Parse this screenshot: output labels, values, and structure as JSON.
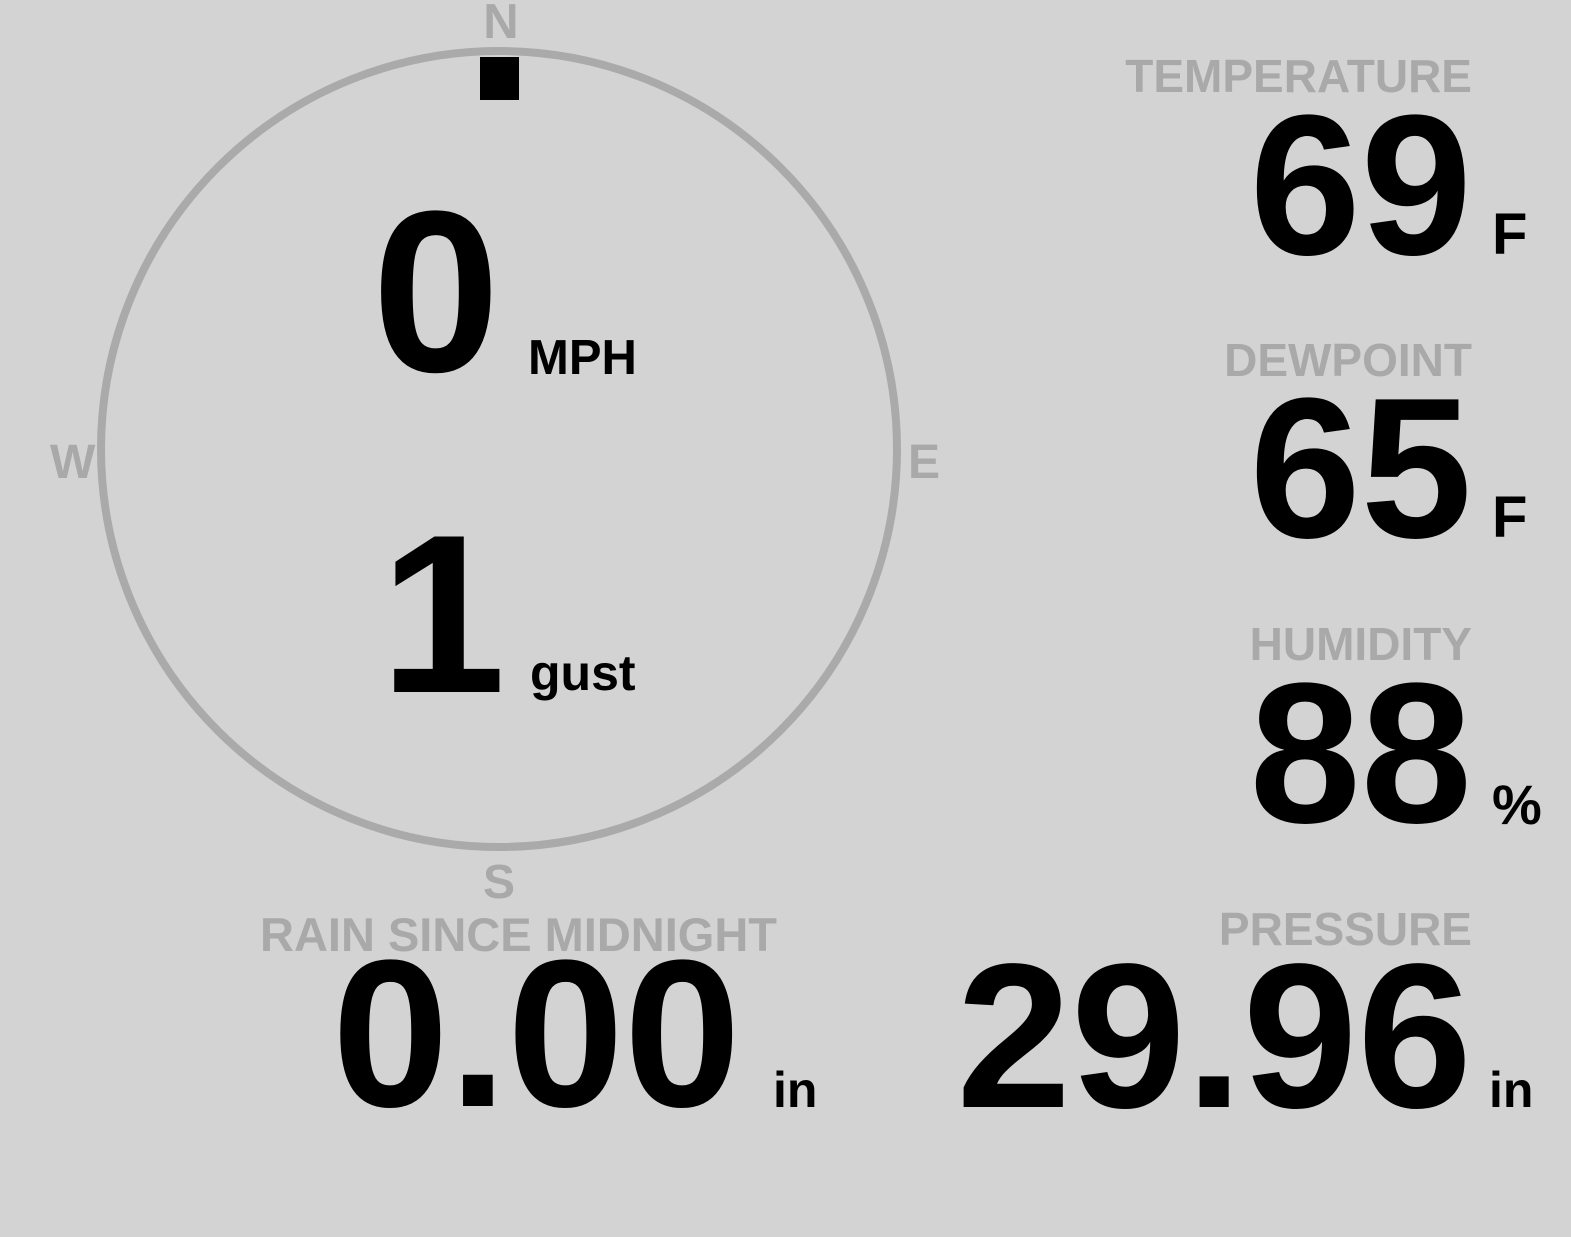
{
  "wind": {
    "compass": {
      "north": "N",
      "east": "E",
      "south": "S",
      "west": "W"
    },
    "direction_degrees": 0,
    "speed": "0",
    "speed_unit": "MPH",
    "gust": "1",
    "gust_label": "gust"
  },
  "rain": {
    "label": "RAIN SINCE MIDNIGHT",
    "value": "0.00",
    "unit": "in"
  },
  "temperature": {
    "label": "TEMPERATURE",
    "value": "69",
    "unit": "F"
  },
  "dewpoint": {
    "label": "DEWPOINT",
    "value": "65",
    "unit": "F"
  },
  "humidity": {
    "label": "HUMIDITY",
    "value": "88",
    "unit": "%"
  },
  "pressure": {
    "label": "PRESSURE",
    "value": "29.96",
    "unit": "in"
  },
  "colors": {
    "background": "#d3d3d3",
    "label": "#a9a9a9",
    "value": "#000000",
    "dial": "#aaaaaa"
  }
}
